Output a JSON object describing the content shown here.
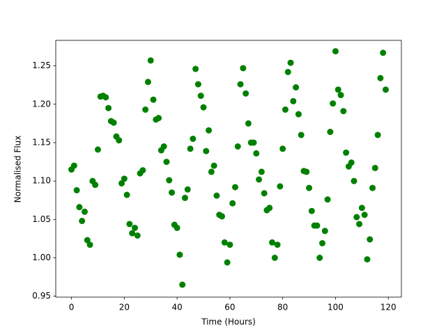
{
  "chart_data": {
    "type": "scatter",
    "xlabel": "Time (Hours)",
    "ylabel": "Normalised Flux",
    "color": "#008000",
    "x": [
      0,
      1,
      2,
      3,
      4,
      5,
      6,
      7,
      8,
      9,
      10,
      11,
      12,
      13,
      14,
      15,
      16,
      17,
      18,
      19,
      20,
      21,
      22,
      23,
      24,
      25,
      26,
      27,
      28,
      29,
      30,
      31,
      32,
      33,
      34,
      35,
      36,
      37,
      38,
      39,
      40,
      41,
      42,
      43,
      44,
      45,
      46,
      47,
      48,
      49,
      50,
      51,
      52,
      53,
      54,
      55,
      56,
      57,
      58,
      59,
      60,
      61,
      62,
      63,
      64,
      65,
      66,
      67,
      68,
      69,
      70,
      71,
      72,
      73,
      74,
      75,
      76,
      77,
      78,
      79,
      80,
      81,
      82,
      83,
      84,
      85,
      86,
      87,
      88,
      89,
      90,
      91,
      92,
      93,
      94,
      95,
      96,
      97,
      98,
      99,
      100,
      101,
      102,
      103,
      104,
      105,
      106,
      107,
      108,
      109,
      110,
      111,
      112,
      113,
      114,
      115,
      116,
      117,
      118,
      119
    ],
    "values": [
      1.115,
      1.12,
      1.088,
      1.066,
      1.048,
      1.06,
      1.023,
      1.017,
      1.1,
      1.095,
      1.141,
      1.21,
      1.211,
      1.209,
      1.195,
      1.178,
      1.176,
      1.158,
      1.153,
      1.097,
      1.103,
      1.082,
      1.044,
      1.032,
      1.039,
      1.029,
      1.11,
      1.114,
      1.193,
      1.229,
      1.257,
      1.206,
      1.18,
      1.182,
      1.14,
      1.145,
      1.125,
      1.101,
      1.085,
      1.043,
      1.039,
      1.004,
      0.965,
      1.078,
      1.089,
      1.142,
      1.155,
      1.246,
      1.226,
      1.211,
      1.196,
      1.139,
      1.166,
      1.112,
      1.12,
      1.081,
      1.056,
      1.054,
      1.02,
      0.994,
      1.017,
      1.071,
      1.092,
      1.145,
      1.226,
      1.247,
      1.214,
      1.175,
      1.15,
      1.15,
      1.136,
      1.102,
      1.112,
      1.084,
      1.062,
      1.065,
      1.02,
      1.0,
      1.017,
      1.093,
      1.142,
      1.193,
      1.242,
      1.254,
      1.204,
      1.222,
      1.187,
      1.16,
      1.113,
      1.112,
      1.091,
      1.061,
      1.042,
      1.042,
      1.0,
      1.019,
      1.035,
      1.076,
      1.164,
      1.201,
      1.269,
      1.219,
      1.212,
      1.191,
      1.137,
      1.119,
      1.124,
      1.1,
      1.053,
      1.044,
      1.065,
      1.056,
      0.998,
      1.024,
      1.091,
      1.117,
      1.16,
      1.234,
      1.267,
      1.219
    ],
    "xlim": [
      -5.95,
      124.95
    ],
    "ylim": [
      0.9488,
      1.2832
    ],
    "xticks": [
      0,
      20,
      40,
      60,
      80,
      100,
      120
    ],
    "yticks": [
      0.95,
      {
        "value": 1,
        "label": "1.00"
      },
      1.05,
      {
        "value": 1.1,
        "label": "1.10"
      },
      1.15,
      {
        "value": 1.2,
        "label": "1.20"
      },
      1.25
    ]
  }
}
